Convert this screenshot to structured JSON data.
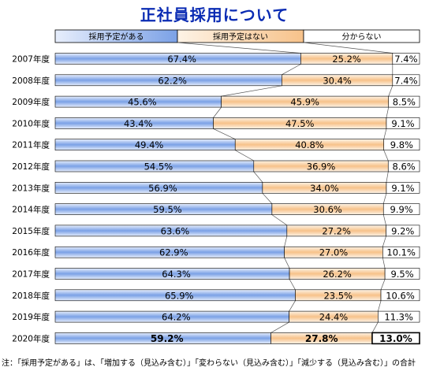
{
  "title": "正社員採用について",
  "note": "注：「採用予定がある」は、「増加する（見込み含む）」「変わらない（見込み含む）」「減少する（見込み含む）」の合計",
  "colors": {
    "title": "#0a2bb3",
    "blue_light": "#e7eefc",
    "blue_dark": "#7ba1e6",
    "orange_light": "#fdf3e6",
    "orange_dark": "#f7c28a",
    "white": "#ffffff"
  },
  "chart_data": {
    "type": "bar",
    "stacked": true,
    "percent": true,
    "orientation": "horizontal",
    "categories": [
      "2007年度",
      "2008年度",
      "2009年度",
      "2010年度",
      "2011年度",
      "2012年度",
      "2013年度",
      "2014年度",
      "2015年度",
      "2016年度",
      "2017年度",
      "2018年度",
      "2019年度",
      "2020年度"
    ],
    "series": [
      {
        "name": "採用予定がある",
        "values": [
          67.4,
          62.2,
          45.6,
          43.4,
          49.4,
          54.5,
          56.9,
          59.5,
          63.6,
          62.9,
          64.3,
          65.9,
          64.2,
          59.2
        ]
      },
      {
        "name": "採用予定はない",
        "values": [
          25.2,
          30.4,
          45.9,
          47.5,
          40.8,
          36.9,
          34.0,
          30.6,
          27.2,
          27.0,
          26.2,
          23.5,
          24.4,
          27.8
        ]
      },
      {
        "name": "分からない",
        "values": [
          7.4,
          7.4,
          8.5,
          9.1,
          9.8,
          8.6,
          9.1,
          9.9,
          9.2,
          10.1,
          9.5,
          10.6,
          11.3,
          13.0
        ]
      }
    ],
    "labels": [
      [
        "67.4%",
        "25.2%",
        "7.4%"
      ],
      [
        "62.2%",
        "30.4%",
        "7.4%"
      ],
      [
        "45.6%",
        "45.9%",
        "8.5%"
      ],
      [
        "43.4%",
        "47.5%",
        "9.1%"
      ],
      [
        "49.4%",
        "40.8%",
        "9.8%"
      ],
      [
        "54.5%",
        "36.9%",
        "8.6%"
      ],
      [
        "56.9%",
        "34.0%",
        "9.1%"
      ],
      [
        "59.5%",
        "30.6%",
        "9.9%"
      ],
      [
        "63.6%",
        "27.2%",
        "9.2%"
      ],
      [
        "62.9%",
        "27.0%",
        "10.1%"
      ],
      [
        "64.3%",
        "26.2%",
        "9.5%"
      ],
      [
        "65.9%",
        "23.5%",
        "10.6%"
      ],
      [
        "64.2%",
        "24.4%",
        "11.3%"
      ],
      [
        "59.2%",
        "27.8%",
        "13.0%"
      ]
    ],
    "legend_position": "top",
    "highlight_last_row": true
  }
}
